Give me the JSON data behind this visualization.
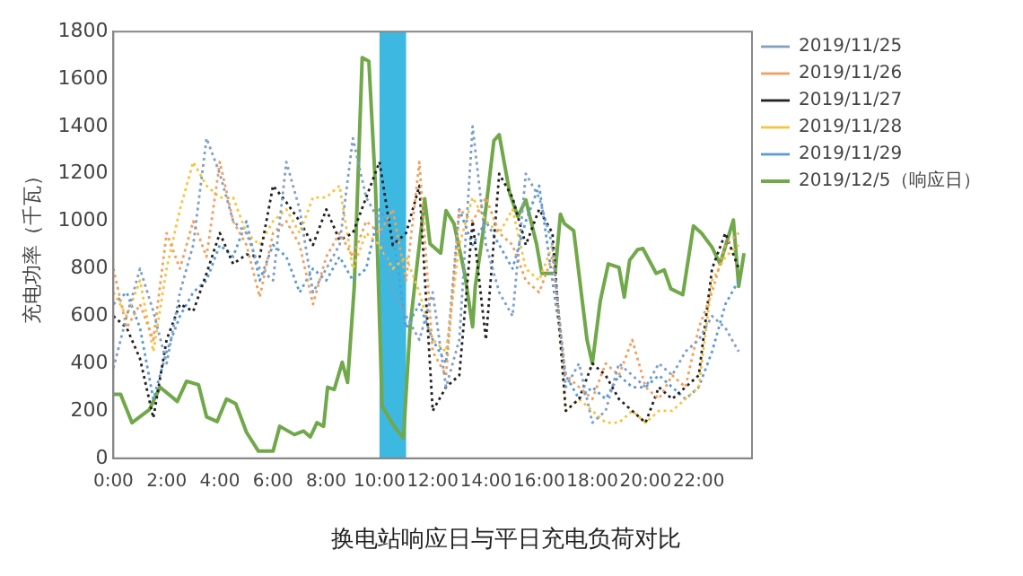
{
  "chart_data": {
    "type": "line",
    "title": "换电站响应日与平日充电负荷对比",
    "ylabel": "充电功率（千瓦）",
    "x": [
      0,
      0.5,
      1,
      1.5,
      2,
      2.5,
      3,
      3.5,
      4,
      4.5,
      5,
      5.5,
      6,
      6.5,
      7,
      7.5,
      8,
      8.5,
      9,
      9.5,
      10,
      10.5,
      11,
      11.5,
      12,
      12.5,
      13,
      13.5,
      14,
      14.5,
      15,
      15.5,
      16,
      16.5,
      17,
      17.5,
      18,
      18.5,
      19,
      19.5,
      20,
      20.5,
      21,
      21.5,
      22,
      22.5,
      23,
      23.5
    ],
    "xlim": [
      0,
      24
    ],
    "xticks": [
      {
        "value": 0,
        "label": "0:00"
      },
      {
        "value": 2,
        "label": "2:00"
      },
      {
        "value": 4,
        "label": "4:00"
      },
      {
        "value": 6,
        "label": "6:00"
      },
      {
        "value": 8,
        "label": "8:00"
      },
      {
        "value": 10,
        "label": "10:00"
      },
      {
        "value": 12,
        "label": "12:00"
      },
      {
        "value": 14,
        "label": "14:00"
      },
      {
        "value": 16,
        "label": "16:00"
      },
      {
        "value": 18,
        "label": "18:00"
      },
      {
        "value": 20,
        "label": "20:00"
      },
      {
        "value": 22,
        "label": "22:00"
      }
    ],
    "ylim": [
      0,
      1800
    ],
    "yticks": [
      0,
      200,
      400,
      600,
      800,
      1000,
      1200,
      1400,
      1600,
      1800
    ],
    "grid": false,
    "legend": "right",
    "marker": "none",
    "bands": [
      {
        "axis": "x",
        "from": 10,
        "to": 11,
        "color": "#3db8e0"
      }
    ],
    "series": [
      {
        "name": "2019/11/25",
        "color": "#7f9fc8",
        "line_style": "dotted",
        "values": [
          380,
          600,
          800,
          620,
          400,
          700,
          900,
          1350,
          1200,
          1000,
          950,
          800,
          750,
          1250,
          1050,
          700,
          800,
          900,
          1350,
          1100,
          1000,
          700,
          600,
          500,
          700,
          300,
          500,
          1400,
          900,
          700,
          600,
          1200,
          1100,
          900,
          300,
          400,
          150,
          200,
          400,
          350,
          300,
          400,
          350,
          450,
          500,
          600,
          550,
          450
        ]
      },
      {
        "name": "2019/11/26",
        "color": "#f0a060",
        "line_style": "dotted",
        "values": [
          800,
          550,
          650,
          500,
          950,
          800,
          1000,
          850,
          1250,
          1000,
          900,
          680,
          950,
          1000,
          900,
          650,
          850,
          950,
          850,
          1000,
          950,
          1050,
          750,
          1250,
          450,
          350,
          1050,
          1000,
          1100,
          950,
          900,
          750,
          700,
          850,
          350,
          300,
          250,
          400,
          350,
          500,
          300,
          250,
          350,
          300,
          550,
          700,
          900,
          950
        ]
      },
      {
        "name": "2019/11/27",
        "color": "#222222",
        "line_style": "dotted",
        "values": [
          600,
          550,
          420,
          170,
          500,
          650,
          620,
          780,
          950,
          820,
          860,
          850,
          1150,
          1080,
          1000,
          900,
          1050,
          920,
          950,
          1100,
          1250,
          900,
          950,
          1150,
          200,
          300,
          350,
          1000,
          500,
          1200,
          1100,
          900,
          1050,
          950,
          200,
          250,
          400,
          350,
          250,
          200,
          150,
          300,
          250,
          300,
          350,
          800,
          950,
          800
        ]
      },
      {
        "name": "2019/11/28",
        "color": "#f5c542",
        "line_style": "dotted",
        "values": [
          700,
          600,
          750,
          450,
          800,
          1050,
          1250,
          1150,
          1100,
          1100,
          950,
          900,
          1000,
          1050,
          950,
          1100,
          1100,
          1150,
          800,
          950,
          900,
          800,
          850,
          700,
          500,
          450,
          900,
          1100,
          1000,
          950,
          1050,
          800,
          750,
          900,
          200,
          250,
          200,
          150,
          150,
          200,
          150,
          200,
          200,
          250,
          300,
          750,
          850,
          900
        ]
      },
      {
        "name": "2019/11/29",
        "color": "#5b9bd5",
        "line_style": "dotted",
        "values": [
          650,
          700,
          550,
          250,
          450,
          600,
          700,
          750,
          900,
          850,
          1000,
          750,
          900,
          850,
          700,
          800,
          750,
          850,
          750,
          800,
          1050,
          950,
          550,
          650,
          500,
          400,
          1050,
          900,
          1000,
          900,
          800,
          1000,
          1150,
          750,
          350,
          250,
          300,
          250,
          350,
          300,
          300,
          350,
          300,
          250,
          300,
          450,
          650,
          750
        ]
      },
      {
        "name": "2019/12/5（响应日）",
        "color": "#70a84a",
        "line_style": "solid",
        "x": [
          0,
          0.27,
          0.7,
          1.35,
          1.75,
          2.4,
          2.75,
          3.2,
          3.5,
          3.9,
          4.25,
          4.6,
          5,
          5.45,
          6,
          6.25,
          6.8,
          7.15,
          7.4,
          7.65,
          7.9,
          8.05,
          8.3,
          8.6,
          8.8,
          9.05,
          9.35,
          9.6,
          9.85,
          10.1,
          10.55,
          10.9,
          11.15,
          11.4,
          11.7,
          11.9,
          12.3,
          12.5,
          12.8,
          13.2,
          13.5,
          13.6,
          13.9,
          14.3,
          14.5,
          14.9,
          15.2,
          15.5,
          15.9,
          16.1,
          16.6,
          16.8,
          16.95,
          17.3,
          17.8,
          18,
          18.3,
          18.6,
          19,
          19.2,
          19.4,
          19.7,
          19.9,
          20.4,
          20.7,
          20.95,
          21.4,
          21.8,
          22.1,
          22.5,
          22.8,
          23.3,
          23.5,
          23.7
        ],
        "values": [
          270,
          270,
          150,
          205,
          300,
          240,
          325,
          310,
          175,
          155,
          250,
          230,
          110,
          30,
          30,
          135,
          100,
          115,
          90,
          150,
          135,
          300,
          290,
          405,
          320,
          720,
          1690,
          1675,
          1145,
          220,
          135,
          85,
          555,
          805,
          1095,
          905,
          865,
          1045,
          990,
          780,
          555,
          725,
          960,
          1340,
          1365,
          1115,
          1020,
          1090,
          905,
          780,
          780,
          1030,
          990,
          960,
          500,
          400,
          665,
          820,
          805,
          680,
          835,
          880,
          885,
          780,
          795,
          715,
          690,
          980,
          950,
          890,
          820,
          1005,
          725,
          865
        ]
      }
    ]
  }
}
